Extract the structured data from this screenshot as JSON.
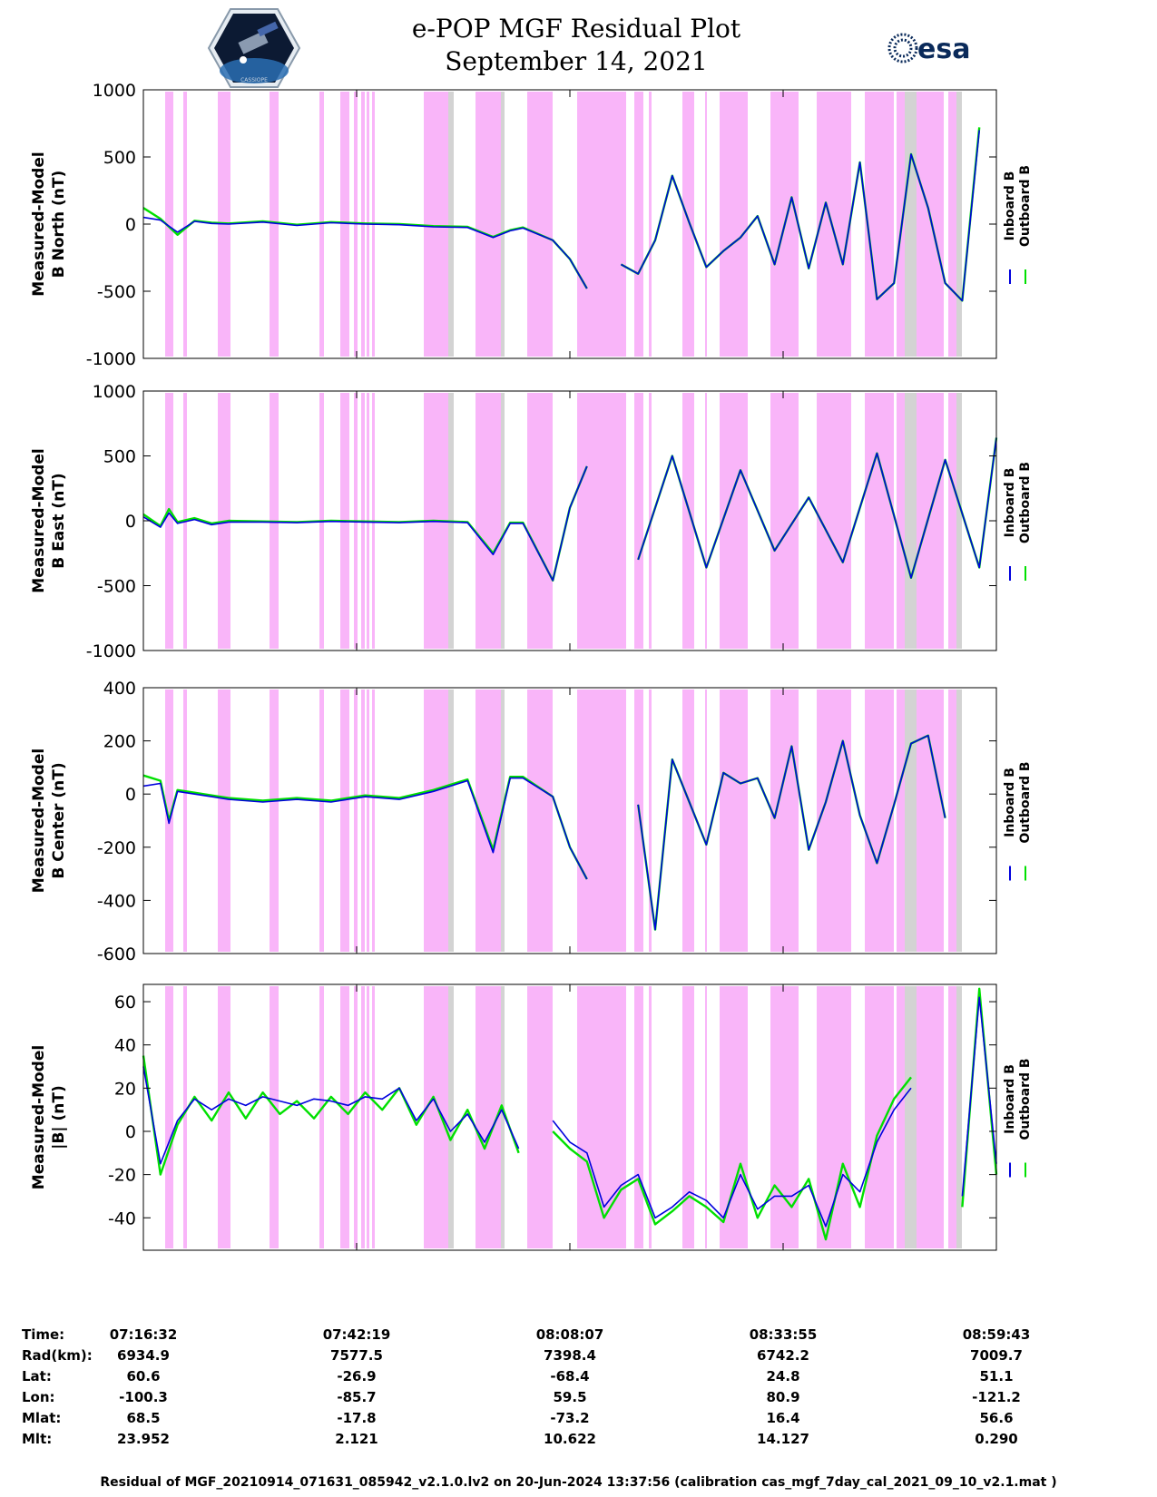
{
  "header": {
    "title": "e-POP MGF Residual Plot",
    "date": "September 14, 2021",
    "logo_left_text": "CASSIOPE",
    "logo_right_text": "esa"
  },
  "colors": {
    "inboard": "#0000dd",
    "outboard": "#00e000",
    "shade_pink": "#f9b5f9",
    "shade_gray": "#d3d3d3"
  },
  "chart_data": [
    {
      "type": "line",
      "ylabel": [
        "Measured-Model",
        "B North (nT)"
      ],
      "ylim": [
        -1000,
        1000
      ],
      "yticks": [
        -1000,
        -500,
        0,
        500,
        1000
      ],
      "legend": [
        "Inboard B",
        "Outboard B"
      ],
      "series": [
        {
          "name": "Inboard B",
          "x": [
            0,
            2,
            4,
            6,
            8,
            10,
            14,
            18,
            22,
            26,
            30,
            34,
            38,
            41,
            43,
            44.5,
            48,
            50,
            52,
            54,
            56,
            58,
            60,
            62,
            64,
            66,
            68,
            70,
            72,
            74,
            76,
            78,
            80,
            82,
            84,
            86,
            88,
            90,
            92,
            94,
            96,
            98,
            100
          ],
          "y": [
            50,
            30,
            -60,
            20,
            5,
            0,
            15,
            -10,
            10,
            0,
            -5,
            -20,
            -25,
            -100,
            -50,
            -30,
            -120,
            -260,
            -480,
            null,
            -300,
            -370,
            -120,
            360,
            10,
            -320,
            -200,
            -100,
            60,
            -300,
            200,
            -330,
            160,
            -300,
            460,
            -560,
            -440,
            520,
            120,
            -440,
            -570,
            700,
            null
          ]
        },
        {
          "name": "Outboard B",
          "x": [
            0,
            2,
            4,
            6,
            8,
            10,
            14,
            18,
            22,
            26,
            30,
            34,
            38,
            41,
            43,
            44.5,
            48,
            50,
            52,
            54,
            56,
            58,
            60,
            62,
            64,
            66,
            68,
            70,
            72,
            74,
            76,
            78,
            80,
            82,
            84,
            86,
            88,
            90,
            92,
            94,
            96,
            98,
            100
          ],
          "y": [
            120,
            40,
            -80,
            25,
            10,
            5,
            20,
            -5,
            15,
            5,
            0,
            -15,
            -20,
            -95,
            -45,
            -25,
            -120,
            -260,
            -480,
            null,
            -300,
            -370,
            -120,
            360,
            10,
            -320,
            -200,
            -100,
            60,
            -300,
            200,
            -330,
            160,
            -300,
            460,
            -560,
            -440,
            520,
            120,
            -440,
            -570,
            720,
            null
          ]
        }
      ]
    },
    {
      "type": "line",
      "ylabel": [
        "Measured-Model",
        "B East (nT)"
      ],
      "ylim": [
        -1000,
        1000
      ],
      "yticks": [
        -1000,
        -500,
        0,
        500,
        1000
      ],
      "legend": [
        "Inboard B",
        "Outboard B"
      ],
      "series": [
        {
          "name": "Inboard B",
          "x": [
            0,
            2,
            3,
            4,
            6,
            8,
            10,
            14,
            18,
            22,
            26,
            30,
            34,
            38,
            41,
            43,
            44.5,
            48,
            50,
            52,
            54,
            58,
            62,
            66,
            70,
            74,
            78,
            82,
            86,
            90,
            94,
            98,
            100
          ],
          "y": [
            30,
            -50,
            60,
            -20,
            10,
            -30,
            -10,
            -10,
            -15,
            -5,
            -10,
            -15,
            -5,
            -15,
            -260,
            -20,
            -20,
            -460,
            100,
            420,
            null,
            -300,
            500,
            -360,
            390,
            -230,
            180,
            -320,
            520,
            -440,
            470,
            -360,
            640
          ]
        },
        {
          "name": "Outboard B",
          "x": [
            0,
            2,
            3,
            4,
            6,
            8,
            10,
            14,
            18,
            22,
            26,
            30,
            34,
            38,
            41,
            43,
            44.5,
            48,
            50,
            52,
            54,
            58,
            62,
            66,
            70,
            74,
            78,
            82,
            86,
            90,
            94,
            98,
            100
          ],
          "y": [
            50,
            -40,
            90,
            -10,
            20,
            -20,
            0,
            -5,
            -10,
            0,
            -5,
            -10,
            0,
            -10,
            -250,
            -15,
            -15,
            -460,
            100,
            420,
            null,
            -300,
            500,
            -360,
            390,
            -230,
            180,
            -320,
            520,
            -440,
            470,
            -360,
            640
          ]
        }
      ]
    },
    {
      "type": "line",
      "ylabel": [
        "Measured-Model",
        "B Center (nT)"
      ],
      "ylim": [
        -600,
        400
      ],
      "yticks": [
        -600,
        -400,
        -200,
        0,
        200,
        400
      ],
      "legend": [
        "Inboard B",
        "Outboard B"
      ],
      "series": [
        {
          "name": "Inboard B",
          "x": [
            0,
            2,
            3,
            4,
            6,
            8,
            10,
            14,
            18,
            22,
            26,
            30,
            34,
            38,
            41,
            43,
            44.5,
            48,
            50,
            52,
            54,
            58,
            60,
            62,
            64,
            66,
            68,
            70,
            72,
            74,
            76,
            78,
            80,
            82,
            84,
            86,
            88,
            90,
            92,
            94,
            96,
            98,
            100
          ],
          "y": [
            30,
            40,
            -110,
            10,
            0,
            -10,
            -20,
            -30,
            -20,
            -30,
            -10,
            -20,
            10,
            50,
            -220,
            60,
            60,
            -10,
            -200,
            -320,
            null,
            -40,
            -510,
            130,
            -30,
            -190,
            80,
            40,
            60,
            -90,
            180,
            -210,
            -30,
            200,
            -80,
            -260,
            -40,
            190,
            220,
            -90,
            null,
            null,
            null
          ]
        },
        {
          "name": "Outboard B",
          "x": [
            0,
            2,
            3,
            4,
            6,
            8,
            10,
            14,
            18,
            22,
            26,
            30,
            34,
            38,
            41,
            43,
            44.5,
            48,
            50,
            52,
            54,
            58,
            60,
            62,
            64,
            66,
            68,
            70,
            72,
            74,
            76,
            78,
            80,
            82,
            84,
            86,
            88,
            90,
            92,
            94,
            96,
            98,
            100
          ],
          "y": [
            70,
            50,
            -100,
            15,
            5,
            -5,
            -15,
            -25,
            -15,
            -25,
            -5,
            -15,
            15,
            55,
            -210,
            65,
            65,
            -10,
            -200,
            -320,
            null,
            -40,
            -510,
            130,
            -30,
            -190,
            80,
            40,
            60,
            -90,
            180,
            -210,
            -30,
            200,
            -80,
            -260,
            -40,
            190,
            220,
            -90,
            null,
            null,
            null
          ]
        }
      ]
    },
    {
      "type": "line",
      "ylabel": [
        "Measured-Model",
        "|B| (nT)"
      ],
      "ylim": [
        -55,
        68
      ],
      "yticks": [
        -40,
        -20,
        0,
        20,
        40,
        60
      ],
      "legend": [
        "Inboard B",
        "Outboard B"
      ],
      "series": [
        {
          "name": "Inboard B",
          "x": [
            0,
            2,
            4,
            6,
            8,
            10,
            12,
            14,
            16,
            18,
            20,
            22,
            24,
            26,
            28,
            30,
            32,
            34,
            36,
            38,
            40,
            42,
            44,
            46,
            48,
            50,
            52,
            54,
            56,
            58,
            60,
            62,
            64,
            66,
            68,
            70,
            72,
            74,
            76,
            78,
            80,
            82,
            84,
            86,
            88,
            90,
            92,
            94,
            96,
            98,
            100
          ],
          "y": [
            30,
            -15,
            5,
            15,
            10,
            15,
            12,
            16,
            14,
            12,
            15,
            14,
            12,
            16,
            15,
            20,
            5,
            15,
            0,
            8,
            -5,
            10,
            -8,
            null,
            5,
            -5,
            -10,
            -35,
            -25,
            -20,
            -40,
            -35,
            -28,
            -32,
            -40,
            -20,
            -36,
            -30,
            -30,
            -25,
            -44,
            -20,
            -28,
            -5,
            10,
            20,
            null,
            null,
            -30,
            62,
            -15
          ]
        },
        {
          "name": "Outboard B",
          "x": [
            0,
            2,
            4,
            6,
            8,
            10,
            12,
            14,
            16,
            18,
            20,
            22,
            24,
            26,
            28,
            30,
            32,
            34,
            36,
            38,
            40,
            42,
            44,
            46,
            48,
            50,
            52,
            54,
            56,
            58,
            60,
            62,
            64,
            66,
            68,
            70,
            72,
            74,
            76,
            78,
            80,
            82,
            84,
            86,
            88,
            90,
            92,
            94,
            96,
            98,
            100
          ],
          "y": [
            35,
            -20,
            3,
            16,
            5,
            18,
            6,
            18,
            8,
            14,
            6,
            16,
            8,
            18,
            10,
            20,
            3,
            16,
            -4,
            10,
            -8,
            12,
            -10,
            null,
            0,
            -8,
            -14,
            -40,
            -27,
            -22,
            -43,
            -37,
            -30,
            -35,
            -42,
            -15,
            -40,
            -25,
            -35,
            -22,
            -50,
            -15,
            -35,
            -2,
            15,
            25,
            null,
            null,
            -35,
            66,
            -20
          ]
        }
      ]
    }
  ],
  "ephemeris": {
    "labels": [
      "Time:",
      "Rad(km):",
      "Lat:",
      "Lon:",
      "Mlat:",
      "Mlt:"
    ],
    "columns": [
      [
        "07:16:32",
        "6934.9",
        "60.6",
        "-100.3",
        "68.5",
        "23.952"
      ],
      [
        "07:42:19",
        "7577.5",
        "-26.9",
        "-85.7",
        "-17.8",
        "2.121"
      ],
      [
        "08:08:07",
        "7398.4",
        "-68.4",
        "59.5",
        "-73.2",
        "10.622"
      ],
      [
        "08:33:55",
        "6742.2",
        "24.8",
        "80.9",
        "16.4",
        "14.127"
      ],
      [
        "08:59:43",
        "7009.7",
        "51.1",
        "-121.2",
        "56.6",
        "0.290"
      ]
    ]
  },
  "footer": "Residual of MGF_20210914_071631_085942_v2.1.0.lv2 on 20-Jun-2024 13:37:56 (calibration cas_mgf_7day_cal_2021_09_10_v2.1.mat )"
}
